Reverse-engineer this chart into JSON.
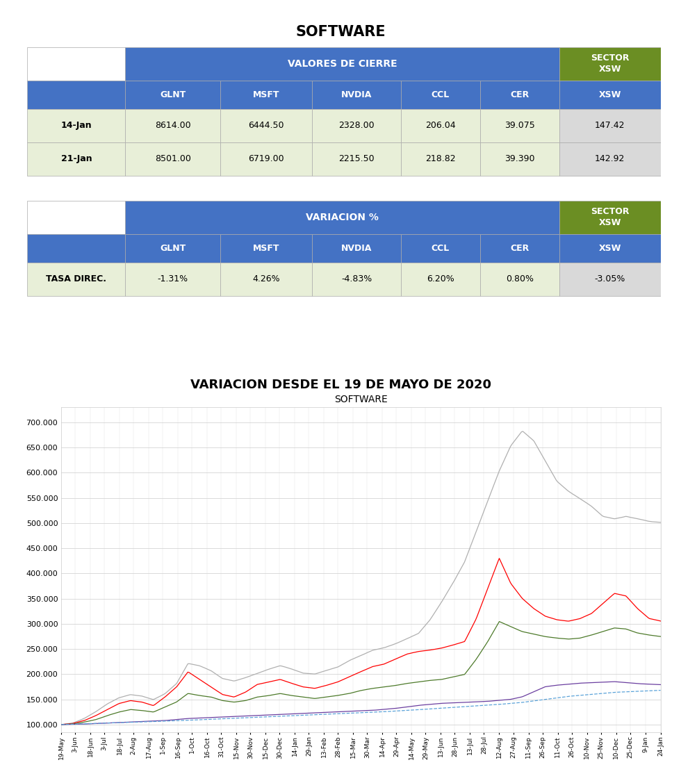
{
  "title_top": "SOFTWARE",
  "title_variation": "VARIACION DESDE EL 19 DE MAYO DE 2020",
  "chart_title": "SOFTWARE",
  "table1_header_main": "VALORES DE CIERRE",
  "table2_header_main": "VARIACION %",
  "table1_rows": [
    [
      "14-Jan",
      "8614.00",
      "6444.50",
      "2328.00",
      "206.04",
      "39.075",
      "147.42"
    ],
    [
      "21-Jan",
      "8501.00",
      "6719.00",
      "2215.50",
      "218.82",
      "39.390",
      "142.92"
    ]
  ],
  "table2_rows": [
    [
      "TASA DIREC.",
      "-1.31%",
      "4.26%",
      "-4.83%",
      "6.20%",
      "0.80%",
      "-3.05%"
    ]
  ],
  "color_blue_header": "#4472C4",
  "color_green_sector": "#6B8E23",
  "color_light_green_row": "#E8EFD8",
  "color_light_gray_sector": "#D9D9D9",
  "color_white": "#FFFFFF",
  "color_black": "#000000",
  "line_colors": {
    "GLNT": "#FF0000",
    "MSFT": "#4D7A2A",
    "NVDIA": "#B0B0B0",
    "CCL": "#6B3FA0",
    "CER": "#5BA3D9"
  },
  "x_labels": [
    "19-May",
    "3-Jun",
    "18-Jun",
    "3-Jul",
    "18-Jul",
    "2-Aug",
    "17-Aug",
    "1-Sep",
    "16-Sep",
    "1-Oct",
    "16-Oct",
    "31-Oct",
    "15-Nov",
    "30-Nov",
    "15-Dec",
    "30-Dec",
    "14-Jan",
    "29-Jan",
    "13-Feb",
    "28-Feb",
    "15-Mar",
    "30-Mar",
    "14-Apr",
    "29-Apr",
    "14-May",
    "29-May",
    "13-Jun",
    "28-Jun",
    "13-Jul",
    "28-Jul",
    "12-Aug",
    "27-Aug",
    "11-Sep",
    "26-Sep",
    "11-Oct",
    "26-Oct",
    "10-Nov",
    "25-Nov",
    "10-Dec",
    "25-Dec",
    "9-Jan",
    "24-Jan"
  ],
  "ylim": [
    85000,
    730000
  ],
  "yticks": [
    100000,
    150000,
    200000,
    250000,
    300000,
    350000,
    400000,
    450000,
    500000,
    550000,
    600000,
    650000,
    700000
  ],
  "GLNT": [
    100000,
    102000,
    108000,
    118000,
    130000,
    142000,
    148000,
    145000,
    138000,
    155000,
    175000,
    205000,
    190000,
    175000,
    160000,
    155000,
    165000,
    180000,
    185000,
    190000,
    182000,
    175000,
    172000,
    178000,
    185000,
    195000,
    205000,
    215000,
    220000,
    230000,
    240000,
    245000,
    248000,
    252000,
    258000,
    265000,
    310000,
    370000,
    430000,
    380000,
    350000,
    330000,
    315000,
    308000,
    305000,
    310000,
    320000,
    340000,
    360000,
    355000,
    330000,
    310000,
    305000
  ],
  "MSFT": [
    100000,
    101000,
    105000,
    110000,
    118000,
    125000,
    130000,
    128000,
    125000,
    135000,
    145000,
    162000,
    158000,
    155000,
    148000,
    145000,
    148000,
    155000,
    158000,
    162000,
    158000,
    155000,
    152000,
    155000,
    158000,
    162000,
    168000,
    172000,
    175000,
    178000,
    182000,
    185000,
    188000,
    190000,
    195000,
    200000,
    230000,
    265000,
    305000,
    295000,
    285000,
    280000,
    275000,
    272000,
    270000,
    272000,
    278000,
    285000,
    292000,
    290000,
    282000,
    278000,
    275000
  ],
  "NVDIA": [
    100000,
    103000,
    112000,
    125000,
    140000,
    152000,
    158000,
    155000,
    148000,
    160000,
    180000,
    220000,
    215000,
    205000,
    190000,
    185000,
    192000,
    200000,
    208000,
    215000,
    208000,
    200000,
    198000,
    205000,
    212000,
    225000,
    235000,
    245000,
    250000,
    258000,
    268000,
    278000,
    305000,
    340000,
    378000,
    420000,
    480000,
    540000,
    600000,
    650000,
    680000,
    660000,
    620000,
    580000,
    560000,
    545000,
    530000,
    510000,
    505000,
    510000,
    505000,
    500000,
    498000
  ],
  "CCL": [
    100000,
    100500,
    101000,
    102000,
    103000,
    104000,
    105000,
    106000,
    107000,
    108000,
    110000,
    112000,
    113000,
    114000,
    115000,
    116000,
    117000,
    118000,
    119000,
    120000,
    121000,
    122000,
    123000,
    124000,
    125000,
    126000,
    127000,
    128000,
    130000,
    132000,
    135000,
    138000,
    140000,
    142000,
    143000,
    144000,
    145000,
    146000,
    148000,
    150000,
    155000,
    165000,
    175000,
    178000,
    180000,
    182000,
    183000,
    184000,
    185000,
    183000,
    181000,
    180000,
    179000
  ],
  "CER": [
    100000,
    100800,
    101500,
    102200,
    103000,
    103800,
    104500,
    105200,
    106000,
    106800,
    107500,
    108500,
    109500,
    110500,
    111500,
    112500,
    113500,
    114500,
    115500,
    116500,
    117500,
    118500,
    119500,
    120500,
    121500,
    122500,
    123500,
    124500,
    125500,
    126800,
    128000,
    129500,
    131000,
    132500,
    134000,
    135500,
    137000,
    138500,
    140000,
    142000,
    144000,
    147000,
    150000,
    153000,
    156000,
    158000,
    160000,
    162000,
    164000,
    165000,
    166000,
    167000,
    168000
  ]
}
